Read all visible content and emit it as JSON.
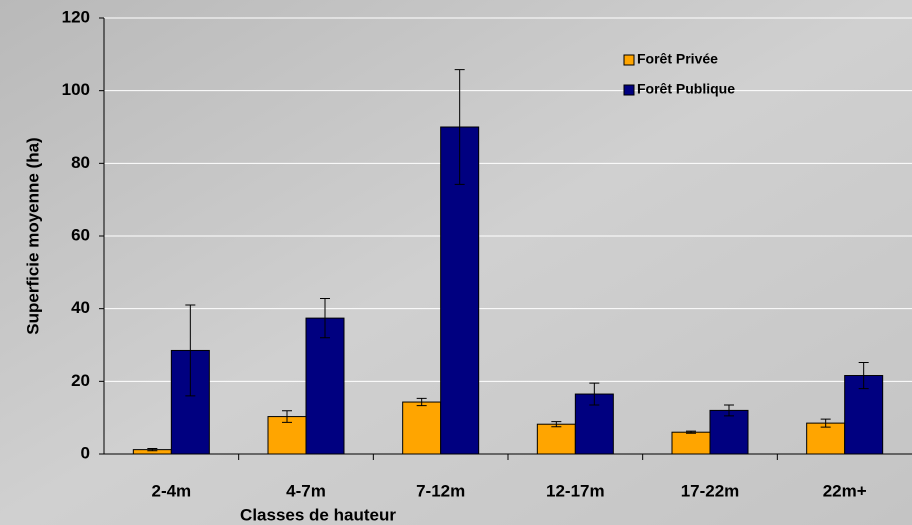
{
  "chart_data": {
    "type": "bar",
    "x_label": "Classes de hauteur",
    "y_label": "Superficie moyenne (ha)",
    "categories": [
      "2-4m",
      "4-7m",
      "7-12m",
      "12-17m",
      "17-22m",
      "22m+"
    ],
    "series": [
      {
        "name": "Forêt Privée",
        "color": "#ffa500",
        "values": [
          1.2,
          10.3,
          14.3,
          8.2,
          6.0,
          8.5
        ],
        "errors": [
          0.3,
          1.6,
          1.0,
          0.7,
          0.3,
          1.1
        ]
      },
      {
        "name": "Forêt Publique",
        "color": "#000080",
        "values": [
          28.5,
          37.4,
          90.0,
          16.5,
          12.0,
          21.6
        ],
        "errors": [
          12.5,
          5.4,
          15.8,
          3.0,
          1.5,
          3.6
        ]
      }
    ],
    "ylim": [
      0,
      120
    ],
    "yticks": [
      0,
      20,
      40,
      60,
      80,
      100,
      120
    ],
    "grid": true,
    "legend": "top-right"
  }
}
